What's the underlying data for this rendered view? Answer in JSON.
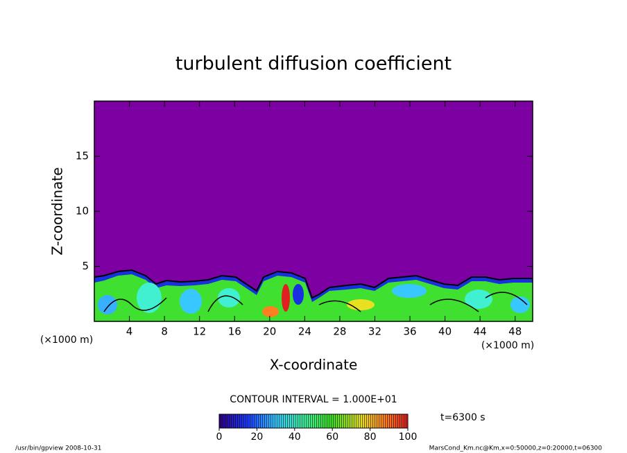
{
  "chart_data": {
    "type": "contour",
    "title": "turbulent diffusion coefficient",
    "xlabel": "X-coordinate",
    "ylabel": "Z-coordinate",
    "xunit": "(×1000 m)",
    "yunit": "(×1000 m)",
    "xlim": [
      0,
      50
    ],
    "ylim": [
      0,
      20
    ],
    "xticks": [
      4,
      8,
      12,
      16,
      20,
      24,
      28,
      32,
      36,
      40,
      44,
      48
    ],
    "yticks": [
      5,
      10,
      15
    ],
    "contour_interval": "CONTOUR INTERVAL = 1.000E+01",
    "time_label": "t=6300 s",
    "colorbar": {
      "lim": [
        0,
        100
      ],
      "ticks": [
        0,
        20,
        40,
        60,
        80,
        100
      ]
    },
    "footer_left": "/usr/bin/gpview   2008-10-31",
    "footer_right": "MarsCond_Km.nc@Km,x=0:50000,z=0:20000,t=06300"
  }
}
